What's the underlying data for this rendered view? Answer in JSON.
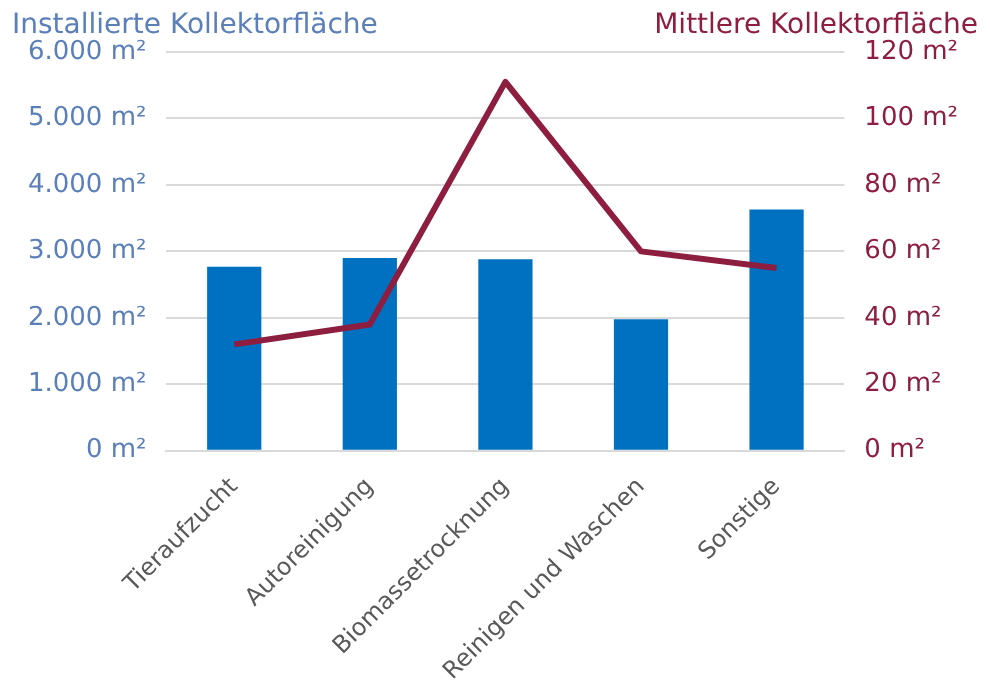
{
  "chart_data": {
    "type": "bar",
    "ylabel": "Installierte Kollektorfläche",
    "y2label": "Mittlere Kollektorfläche",
    "categories": [
      "Tieraufzucht",
      "Autoreinigung",
      "Biomassetrocknung",
      "Reinigen und Waschen",
      "Sonstige"
    ],
    "series": [
      {
        "color": "#0070c0",
        "values": [
          2770,
          2900,
          2880,
          1980,
          3630
        ]
      },
      {
        "type": "line",
        "axis": "y2",
        "color": "#8e1e3f",
        "values": [
          32,
          38,
          111,
          60,
          55
        ]
      }
    ],
    "ylim": [
      0,
      6000
    ],
    "yticks": [
      {
        "value": 0,
        "label": "0 m²"
      },
      {
        "value": 1000,
        "label": "1.000 m²"
      },
      {
        "value": 2000,
        "label": "2.000 m²"
      },
      {
        "value": 3000,
        "label": "3.000 m²"
      },
      {
        "value": 4000,
        "label": "4.000 m²"
      },
      {
        "value": 5000,
        "label": "5.000 m²"
      },
      {
        "value": 6000,
        "label": "6.000 m²"
      }
    ],
    "y2lim": [
      0,
      120
    ],
    "y2ticks": [
      {
        "value": 0,
        "label": "0 m²"
      },
      {
        "value": 20,
        "label": "20 m²"
      },
      {
        "value": 40,
        "label": "40 m²"
      },
      {
        "value": 60,
        "label": "60 m²"
      },
      {
        "value": 80,
        "label": "80 m²"
      },
      {
        "value": 100,
        "label": "100 m²"
      },
      {
        "value": 120,
        "label": "120 m²"
      }
    ],
    "grid": "y",
    "legend": false,
    "marker": "none",
    "line_style": "solid"
  }
}
